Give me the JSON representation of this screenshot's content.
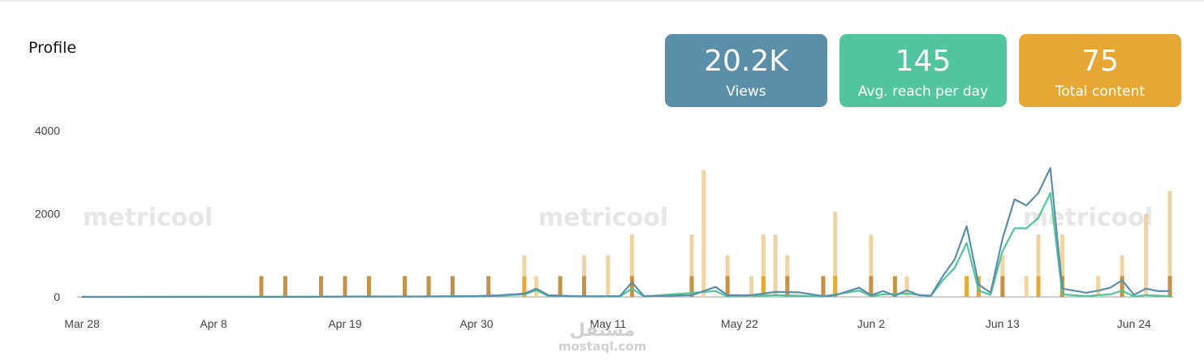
{
  "title": "Profile",
  "cards": [
    {
      "value": "20.2K",
      "label": "Views",
      "color": "#5b8ea8"
    },
    {
      "value": "145",
      "label": "Avg. reach per day",
      "color": "#52c49e"
    },
    {
      "value": "75",
      "label": "Total content",
      "color": "#e6a734"
    }
  ],
  "watermarks": {
    "brand": "metricool",
    "site_arabic": "مستقل",
    "site": "mostaql.com"
  },
  "chart_data": {
    "type": "line",
    "ylim": [
      0,
      4000
    ],
    "yticks": [
      0,
      2000,
      4000
    ],
    "xlim": [
      "2022-03-28",
      "2022-06-27"
    ],
    "xticks": [
      {
        "date": "2022-03-28",
        "label": "Mar 28"
      },
      {
        "date": "2022-04-08",
        "label": "Apr 8"
      },
      {
        "date": "2022-04-19",
        "label": "Apr 19"
      },
      {
        "date": "2022-04-30",
        "label": "Apr 30"
      },
      {
        "date": "2022-05-11",
        "label": "May 11"
      },
      {
        "date": "2022-05-22",
        "label": "May 22"
      },
      {
        "date": "2022-06-02",
        "label": "Jun 2"
      },
      {
        "date": "2022-06-13",
        "label": "Jun 13"
      },
      {
        "date": "2022-06-24",
        "label": "Jun 24"
      }
    ],
    "colors": {
      "views": "#5b8ea8",
      "reach": "#52c49e",
      "bar_light": "#efd3a3",
      "bar_dark": "#c49246",
      "bar_mid": "#e6a734"
    },
    "series": [
      {
        "key": "views",
        "points": [
          [
            "2022-03-28",
            0
          ],
          [
            "2022-04-01",
            0
          ],
          [
            "2022-04-05",
            0
          ],
          [
            "2022-04-10",
            0
          ],
          [
            "2022-04-15",
            0
          ],
          [
            "2022-04-20",
            10
          ],
          [
            "2022-04-25",
            10
          ],
          [
            "2022-04-30",
            20
          ],
          [
            "2022-05-02",
            40
          ],
          [
            "2022-05-04",
            80
          ],
          [
            "2022-05-05",
            200
          ],
          [
            "2022-05-06",
            40
          ],
          [
            "2022-05-08",
            20
          ],
          [
            "2022-05-10",
            10
          ],
          [
            "2022-05-12",
            20
          ],
          [
            "2022-05-13",
            350
          ],
          [
            "2022-05-14",
            20
          ],
          [
            "2022-05-16",
            30
          ],
          [
            "2022-05-18",
            40
          ],
          [
            "2022-05-20",
            240
          ],
          [
            "2022-05-21",
            40
          ],
          [
            "2022-05-23",
            40
          ],
          [
            "2022-05-25",
            120
          ],
          [
            "2022-05-27",
            110
          ],
          [
            "2022-05-29",
            20
          ],
          [
            "2022-05-30",
            40
          ],
          [
            "2022-06-01",
            220
          ],
          [
            "2022-06-02",
            40
          ],
          [
            "2022-06-03",
            140
          ],
          [
            "2022-06-04",
            30
          ],
          [
            "2022-06-05",
            160
          ],
          [
            "2022-06-06",
            40
          ],
          [
            "2022-06-07",
            30
          ],
          [
            "2022-06-08",
            500
          ],
          [
            "2022-06-09",
            900
          ],
          [
            "2022-06-10",
            1700
          ],
          [
            "2022-06-11",
            300
          ],
          [
            "2022-06-12",
            100
          ],
          [
            "2022-06-13",
            1400
          ],
          [
            "2022-06-14",
            2350
          ],
          [
            "2022-06-15",
            2200
          ],
          [
            "2022-06-16",
            2500
          ],
          [
            "2022-06-17",
            3100
          ],
          [
            "2022-06-18",
            200
          ],
          [
            "2022-06-19",
            150
          ],
          [
            "2022-06-20",
            100
          ],
          [
            "2022-06-21",
            150
          ],
          [
            "2022-06-22",
            220
          ],
          [
            "2022-06-23",
            400
          ],
          [
            "2022-06-24",
            50
          ],
          [
            "2022-06-25",
            200
          ],
          [
            "2022-06-26",
            140
          ],
          [
            "2022-06-27",
            140
          ]
        ]
      },
      {
        "key": "reach",
        "points": [
          [
            "2022-03-28",
            0
          ],
          [
            "2022-04-30",
            10
          ],
          [
            "2022-05-02",
            30
          ],
          [
            "2022-05-04",
            60
          ],
          [
            "2022-05-05",
            160
          ],
          [
            "2022-05-06",
            20
          ],
          [
            "2022-05-12",
            10
          ],
          [
            "2022-05-13",
            200
          ],
          [
            "2022-05-14",
            10
          ],
          [
            "2022-05-20",
            140
          ],
          [
            "2022-05-21",
            10
          ],
          [
            "2022-05-25",
            40
          ],
          [
            "2022-05-27",
            30
          ],
          [
            "2022-05-29",
            10
          ],
          [
            "2022-06-01",
            150
          ],
          [
            "2022-06-02",
            20
          ],
          [
            "2022-06-03",
            60
          ],
          [
            "2022-06-05",
            80
          ],
          [
            "2022-06-07",
            20
          ],
          [
            "2022-06-08",
            400
          ],
          [
            "2022-06-09",
            700
          ],
          [
            "2022-06-10",
            1300
          ],
          [
            "2022-06-11",
            150
          ],
          [
            "2022-06-12",
            50
          ],
          [
            "2022-06-13",
            1100
          ],
          [
            "2022-06-14",
            1650
          ],
          [
            "2022-06-15",
            1650
          ],
          [
            "2022-06-16",
            1900
          ],
          [
            "2022-06-17",
            2500
          ],
          [
            "2022-06-18",
            60
          ],
          [
            "2022-06-20",
            20
          ],
          [
            "2022-06-22",
            60
          ],
          [
            "2022-06-23",
            150
          ],
          [
            "2022-06-24",
            10
          ],
          [
            "2022-06-25",
            40
          ],
          [
            "2022-06-27",
            20
          ]
        ]
      }
    ],
    "bars": [
      {
        "date": "2022-04-12",
        "value": 500,
        "tone": "dark"
      },
      {
        "date": "2022-04-14",
        "value": 500,
        "tone": "dark"
      },
      {
        "date": "2022-04-17",
        "value": 500,
        "tone": "dark"
      },
      {
        "date": "2022-04-19",
        "value": 500,
        "tone": "dark"
      },
      {
        "date": "2022-04-21",
        "value": 500,
        "tone": "dark"
      },
      {
        "date": "2022-04-24",
        "value": 500,
        "tone": "dark"
      },
      {
        "date": "2022-04-26",
        "value": 500,
        "tone": "dark"
      },
      {
        "date": "2022-04-28",
        "value": 500,
        "tone": "dark"
      },
      {
        "date": "2022-05-01",
        "value": 500,
        "tone": "dark"
      },
      {
        "date": "2022-05-04",
        "value": 1000,
        "tone": "light"
      },
      {
        "date": "2022-05-04",
        "value": 500,
        "tone": "mid"
      },
      {
        "date": "2022-05-05",
        "value": 500,
        "tone": "light"
      },
      {
        "date": "2022-05-07",
        "value": 500,
        "tone": "dark"
      },
      {
        "date": "2022-05-09",
        "value": 1000,
        "tone": "light"
      },
      {
        "date": "2022-05-09",
        "value": 500,
        "tone": "dark"
      },
      {
        "date": "2022-05-11",
        "value": 1000,
        "tone": "light"
      },
      {
        "date": "2022-05-13",
        "value": 1500,
        "tone": "light"
      },
      {
        "date": "2022-05-13",
        "value": 500,
        "tone": "dark"
      },
      {
        "date": "2022-05-18",
        "value": 1500,
        "tone": "light"
      },
      {
        "date": "2022-05-18",
        "value": 500,
        "tone": "dark"
      },
      {
        "date": "2022-05-19",
        "value": 3050,
        "tone": "light"
      },
      {
        "date": "2022-05-21",
        "value": 1000,
        "tone": "light"
      },
      {
        "date": "2022-05-21",
        "value": 500,
        "tone": "dark"
      },
      {
        "date": "2022-05-23",
        "value": 500,
        "tone": "light"
      },
      {
        "date": "2022-05-24",
        "value": 1500,
        "tone": "light"
      },
      {
        "date": "2022-05-24",
        "value": 500,
        "tone": "mid"
      },
      {
        "date": "2022-05-25",
        "value": 1500,
        "tone": "light"
      },
      {
        "date": "2022-05-26",
        "value": 1000,
        "tone": "light"
      },
      {
        "date": "2022-05-26",
        "value": 500,
        "tone": "dark"
      },
      {
        "date": "2022-05-29",
        "value": 500,
        "tone": "dark"
      },
      {
        "date": "2022-05-30",
        "value": 2050,
        "tone": "light"
      },
      {
        "date": "2022-05-30",
        "value": 500,
        "tone": "mid"
      },
      {
        "date": "2022-06-02",
        "value": 1500,
        "tone": "light"
      },
      {
        "date": "2022-06-02",
        "value": 500,
        "tone": "dark"
      },
      {
        "date": "2022-06-04",
        "value": 500,
        "tone": "dark"
      },
      {
        "date": "2022-06-05",
        "value": 500,
        "tone": "light"
      },
      {
        "date": "2022-06-10",
        "value": 500,
        "tone": "mid"
      },
      {
        "date": "2022-06-11",
        "value": 500,
        "tone": "mid"
      },
      {
        "date": "2022-06-13",
        "value": 1000,
        "tone": "light"
      },
      {
        "date": "2022-06-13",
        "value": 500,
        "tone": "dark"
      },
      {
        "date": "2022-06-15",
        "value": 500,
        "tone": "light"
      },
      {
        "date": "2022-06-16",
        "value": 1500,
        "tone": "light"
      },
      {
        "date": "2022-06-16",
        "value": 500,
        "tone": "mid"
      },
      {
        "date": "2022-06-18",
        "value": 1500,
        "tone": "light"
      },
      {
        "date": "2022-06-18",
        "value": 500,
        "tone": "dark"
      },
      {
        "date": "2022-06-21",
        "value": 500,
        "tone": "light"
      },
      {
        "date": "2022-06-23",
        "value": 1000,
        "tone": "light"
      },
      {
        "date": "2022-06-23",
        "value": 500,
        "tone": "dark"
      },
      {
        "date": "2022-06-25",
        "value": 2000,
        "tone": "light"
      },
      {
        "date": "2022-06-27",
        "value": 2550,
        "tone": "light"
      },
      {
        "date": "2022-06-27",
        "value": 500,
        "tone": "dark"
      }
    ]
  }
}
